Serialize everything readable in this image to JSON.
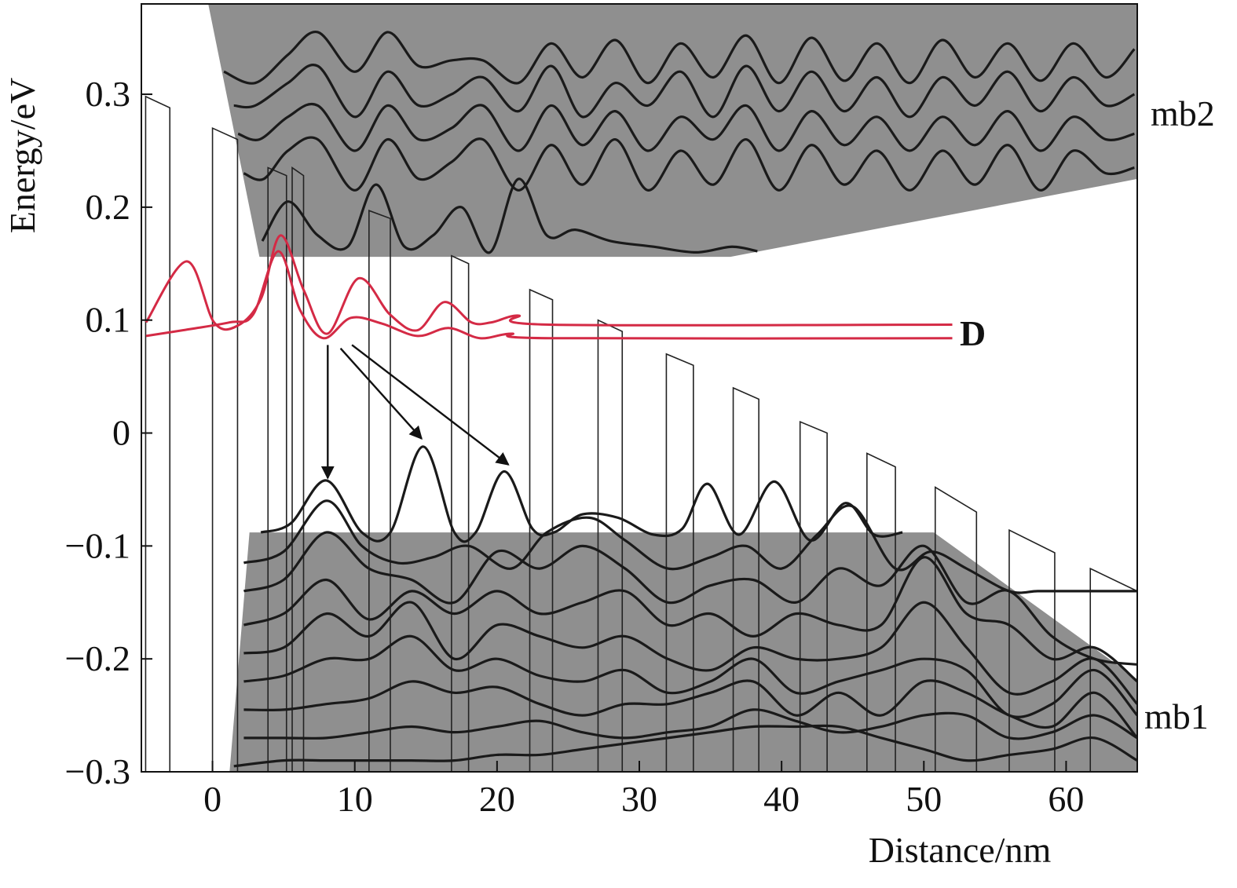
{
  "chart_data": {
    "type": "line",
    "xlabel": "Distance/nm",
    "ylabel": "Energy/eV",
    "xlim": [
      -5,
      65
    ],
    "ylim": [
      -0.3,
      0.38
    ],
    "xticks": [
      0,
      10,
      20,
      30,
      40,
      50,
      60
    ],
    "yticks": [
      {
        "value": -0.3,
        "label": "−0.3"
      },
      {
        "value": -0.2,
        "label": "−0.2"
      },
      {
        "value": -0.1,
        "label": "−0.1"
      },
      0,
      0.1,
      0.2,
      0.3
    ],
    "annotations": [
      "mb2",
      "D",
      "mb1"
    ],
    "minibands": [
      {
        "color": "#8f8f8f",
        "x": [
          -0.3,
          3.3,
          36.4,
          65,
          65,
          -0.3
        ],
        "y": [
          0.38,
          0.156,
          0.156,
          0.225,
          0.38,
          0.38
        ]
      },
      {
        "color": "#8f8f8f",
        "x": [
          2.6,
          50.7,
          65,
          65,
          1.2
        ],
        "y": [
          -0.088,
          -0.088,
          -0.218,
          -0.3,
          -0.3
        ]
      }
    ],
    "barrier_color": "#222222",
    "barriers": [
      {
        "x": [
          -4.7,
          -3.0
        ],
        "top": [
          0.298,
          0.288
        ]
      },
      {
        "x": [
          0.0,
          1.76
        ],
        "top": [
          0.27,
          0.26
        ]
      },
      {
        "x": [
          3.9,
          5.2
        ],
        "top": [
          0.235,
          0.228
        ]
      },
      {
        "x": [
          5.6,
          6.4
        ],
        "top": [
          0.235,
          0.228
        ]
      },
      {
        "x": [
          11.0,
          12.5
        ],
        "top": [
          0.197,
          0.19
        ]
      },
      {
        "x": [
          16.8,
          18.0
        ],
        "top": [
          0.157,
          0.15
        ]
      },
      {
        "x": [
          22.3,
          23.9
        ],
        "top": [
          0.127,
          0.118
        ]
      },
      {
        "x": [
          27.1,
          28.8
        ],
        "top": [
          0.1,
          0.09
        ]
      },
      {
        "x": [
          31.9,
          33.8
        ],
        "top": [
          0.07,
          0.06
        ]
      },
      {
        "x": [
          36.6,
          38.4
        ],
        "top": [
          0.04,
          0.03
        ]
      },
      {
        "x": [
          41.3,
          43.2
        ],
        "top": [
          0.01,
          0.0
        ]
      },
      {
        "x": [
          46.0,
          48.0
        ],
        "top": [
          -0.018,
          -0.03
        ]
      },
      {
        "x": [
          50.8,
          53.7
        ],
        "top": [
          -0.048,
          -0.07
        ]
      },
      {
        "x": [
          56.0,
          59.2
        ],
        "top": [
          -0.086,
          -0.106
        ]
      },
      {
        "x": [
          61.7,
          65.0
        ],
        "top": [
          -0.12,
          -0.14
        ]
      }
    ],
    "arrows": [
      {
        "x": [
          8.1,
          8.1
        ],
        "y": [
          0.078,
          -0.04
        ]
      },
      {
        "x": [
          9.0,
          14.7
        ],
        "y": [
          0.075,
          -0.005
        ]
      },
      {
        "x": [
          9.8,
          20.8
        ],
        "y": [
          0.078,
          -0.028
        ]
      }
    ],
    "series": [
      {
        "color": "#d42a45",
        "x": [
          -4.67,
          -1.81,
          0.11,
          1.76,
          3.41,
          4.78,
          6.43,
          8.08,
          10.27,
          12.47,
          14.4,
          16.3,
          18.2,
          19.6,
          21.5,
          23.7,
          52.0
        ],
        "values": [
          0.098,
          0.152,
          0.098,
          0.095,
          0.119,
          0.175,
          0.126,
          0.088,
          0.137,
          0.105,
          0.091,
          0.116,
          0.098,
          0.098,
          0.104,
          0.096,
          0.096
        ]
      },
      {
        "color": "#d42a45",
        "x": [
          -4.67,
          -2.09,
          1.21,
          2.86,
          4.62,
          6.15,
          7.8,
          9.73,
          11.9,
          14.4,
          16.6,
          18.8,
          21.0,
          23.7,
          52.0
        ],
        "values": [
          0.086,
          0.091,
          0.098,
          0.105,
          0.161,
          0.109,
          0.084,
          0.102,
          0.097,
          0.086,
          0.093,
          0.084,
          0.088,
          0.084,
          0.084
        ]
      },
      {
        "color": "#1a1a1a",
        "x": [
          0.8,
          3,
          5.3,
          7.4,
          10,
          12.3,
          14.5,
          16.8,
          19,
          21.5,
          23.8,
          26,
          28.3,
          30.6,
          32.9,
          35.2,
          37.5,
          39.8,
          42.1,
          44.4,
          46.7,
          49,
          51.3,
          53.6,
          55.9,
          58.2,
          60.5,
          62.8,
          64.8
        ],
        "values": [
          0.32,
          0.31,
          0.335,
          0.355,
          0.32,
          0.355,
          0.325,
          0.33,
          0.33,
          0.31,
          0.345,
          0.315,
          0.348,
          0.31,
          0.345,
          0.315,
          0.352,
          0.31,
          0.35,
          0.312,
          0.345,
          0.31,
          0.348,
          0.315,
          0.345,
          0.312,
          0.345,
          0.315,
          0.34
        ]
      },
      {
        "color": "#1a1a1a",
        "x": [
          1.5,
          3,
          5.3,
          7.4,
          10,
          12.3,
          14.5,
          16.8,
          19,
          21.5,
          23.8,
          26,
          28.3,
          30.6,
          32.9,
          35.2,
          37.5,
          39.8,
          42.1,
          44.4,
          46.7,
          49,
          51.3,
          53.6,
          55.9,
          58.2,
          60.5,
          62.8,
          64.8
        ],
        "values": [
          0.29,
          0.29,
          0.31,
          0.325,
          0.28,
          0.32,
          0.29,
          0.3,
          0.315,
          0.285,
          0.325,
          0.28,
          0.31,
          0.29,
          0.32,
          0.28,
          0.325,
          0.285,
          0.32,
          0.285,
          0.315,
          0.28,
          0.315,
          0.29,
          0.32,
          0.285,
          0.315,
          0.29,
          0.3
        ]
      },
      {
        "color": "#1a1a1a",
        "x": [
          1.8,
          3.3,
          5.3,
          7.4,
          10,
          12.3,
          14.5,
          16.8,
          19,
          21.5,
          23.8,
          26,
          28.3,
          30.6,
          32.9,
          35.2,
          37.5,
          39.8,
          42.1,
          44.4,
          46.7,
          49,
          51.3,
          53.6,
          55.9,
          58.2,
          60.5,
          62.8,
          64.8
        ],
        "values": [
          0.265,
          0.26,
          0.28,
          0.29,
          0.25,
          0.29,
          0.26,
          0.27,
          0.29,
          0.25,
          0.29,
          0.255,
          0.285,
          0.25,
          0.28,
          0.26,
          0.29,
          0.25,
          0.285,
          0.255,
          0.28,
          0.25,
          0.28,
          0.255,
          0.285,
          0.25,
          0.28,
          0.26,
          0.265
        ]
      },
      {
        "color": "#1a1a1a",
        "x": [
          2.2,
          3.6,
          5.3,
          7.4,
          10,
          12.3,
          14.5,
          16.8,
          19,
          21.5,
          23.8,
          26,
          28.3,
          30.6,
          32.9,
          35.2,
          37.5,
          39.8,
          42.1,
          44.4,
          46.7,
          49,
          51.3,
          53.6,
          55.9,
          58.2,
          60.5,
          62.8,
          64.8
        ],
        "values": [
          0.23,
          0.225,
          0.25,
          0.26,
          0.215,
          0.26,
          0.225,
          0.24,
          0.26,
          0.215,
          0.255,
          0.22,
          0.26,
          0.215,
          0.25,
          0.22,
          0.26,
          0.215,
          0.255,
          0.22,
          0.25,
          0.215,
          0.25,
          0.22,
          0.255,
          0.215,
          0.25,
          0.23,
          0.235
        ]
      },
      {
        "color": "#1a1a1a",
        "x": [
          3.5,
          5.3,
          7.4,
          9.5,
          11.5,
          13.5,
          15.5,
          17.5,
          19.5,
          21.5,
          23.5,
          25.5,
          28,
          31,
          34,
          36.5,
          38.3
        ],
        "values": [
          0.17,
          0.205,
          0.175,
          0.165,
          0.22,
          0.165,
          0.175,
          0.2,
          0.16,
          0.225,
          0.175,
          0.18,
          0.17,
          0.165,
          0.16,
          0.165,
          0.161
        ]
      },
      {
        "color": "#1a1a1a",
        "x": [
          3.4,
          5.5,
          8,
          10.5,
          12.5,
          14.8,
          17,
          18.5,
          20.5,
          22.5,
          24,
          26,
          28.5,
          31,
          33,
          34.8,
          37,
          39.5,
          42,
          44.5,
          46.5,
          48.5
        ],
        "values": [
          -0.088,
          -0.08,
          -0.042,
          -0.088,
          -0.088,
          -0.012,
          -0.088,
          -0.088,
          -0.034,
          -0.085,
          -0.088,
          -0.072,
          -0.075,
          -0.09,
          -0.085,
          -0.045,
          -0.09,
          -0.043,
          -0.095,
          -0.062,
          -0.09,
          -0.088
        ]
      },
      {
        "color": "#1a1a1a",
        "x": [
          2.2,
          5,
          8,
          10.5,
          13,
          15.5,
          18,
          21,
          23.5,
          26.5,
          29,
          32,
          35,
          37.5,
          40,
          42.5,
          45,
          48,
          50.5,
          53,
          56,
          58,
          60,
          62.5,
          65
        ],
        "values": [
          -0.115,
          -0.105,
          -0.06,
          -0.1,
          -0.115,
          -0.11,
          -0.1,
          -0.12,
          -0.088,
          -0.075,
          -0.095,
          -0.12,
          -0.11,
          -0.1,
          -0.12,
          -0.09,
          -0.065,
          -0.12,
          -0.105,
          -0.12,
          -0.14,
          -0.14,
          -0.14,
          -0.14,
          -0.14
        ]
      },
      {
        "color": "#1a1a1a",
        "x": [
          2.2,
          5,
          8,
          11,
          14,
          17,
          20,
          23,
          26,
          29,
          32,
          35,
          38,
          41,
          44,
          47,
          50,
          53,
          56,
          59,
          62,
          65
        ],
        "values": [
          -0.14,
          -0.13,
          -0.088,
          -0.12,
          -0.13,
          -0.15,
          -0.105,
          -0.12,
          -0.1,
          -0.12,
          -0.15,
          -0.135,
          -0.13,
          -0.15,
          -0.12,
          -0.135,
          -0.1,
          -0.15,
          -0.14,
          -0.18,
          -0.2,
          -0.205
        ]
      },
      {
        "color": "#1a1a1a",
        "x": [
          2.2,
          5,
          8,
          11,
          14,
          17,
          20,
          23,
          26,
          29,
          32,
          35,
          38,
          41,
          44,
          47,
          50,
          53,
          56,
          59,
          62,
          65
        ],
        "values": [
          -0.17,
          -0.16,
          -0.13,
          -0.165,
          -0.14,
          -0.16,
          -0.14,
          -0.16,
          -0.15,
          -0.14,
          -0.17,
          -0.16,
          -0.18,
          -0.16,
          -0.17,
          -0.17,
          -0.11,
          -0.16,
          -0.17,
          -0.2,
          -0.19,
          -0.22
        ]
      },
      {
        "color": "#1a1a1a",
        "x": [
          2.2,
          5,
          8,
          11,
          14,
          17,
          20,
          23,
          26,
          29,
          32,
          35,
          38,
          41,
          44,
          47,
          50,
          53,
          56,
          59,
          62,
          65
        ],
        "values": [
          -0.195,
          -0.19,
          -0.16,
          -0.18,
          -0.15,
          -0.2,
          -0.17,
          -0.18,
          -0.19,
          -0.18,
          -0.2,
          -0.21,
          -0.19,
          -0.2,
          -0.2,
          -0.19,
          -0.15,
          -0.19,
          -0.23,
          -0.22,
          -0.2,
          -0.24
        ]
      },
      {
        "color": "#1a1a1a",
        "x": [
          2.2,
          5,
          8,
          11,
          14,
          17,
          20,
          23,
          26,
          29,
          32,
          35,
          38,
          41,
          44,
          47,
          50,
          53,
          56,
          59,
          62,
          65
        ],
        "values": [
          -0.22,
          -0.215,
          -0.2,
          -0.2,
          -0.18,
          -0.21,
          -0.2,
          -0.215,
          -0.22,
          -0.21,
          -0.23,
          -0.22,
          -0.2,
          -0.23,
          -0.22,
          -0.21,
          -0.2,
          -0.21,
          -0.25,
          -0.24,
          -0.21,
          -0.25
        ]
      },
      {
        "color": "#1a1a1a",
        "x": [
          2.2,
          5,
          8,
          11,
          14,
          17,
          20,
          23,
          26,
          29,
          32,
          35,
          38,
          41,
          44,
          47,
          50,
          53,
          56,
          59,
          62,
          65
        ],
        "values": [
          -0.245,
          -0.245,
          -0.24,
          -0.235,
          -0.22,
          -0.23,
          -0.225,
          -0.24,
          -0.25,
          -0.24,
          -0.24,
          -0.23,
          -0.22,
          -0.25,
          -0.23,
          -0.25,
          -0.22,
          -0.23,
          -0.25,
          -0.26,
          -0.23,
          -0.27
        ]
      },
      {
        "color": "#1a1a1a",
        "x": [
          2.2,
          5,
          8,
          11,
          14,
          17,
          20,
          23,
          26,
          29,
          32,
          35,
          38,
          41,
          44,
          47,
          50,
          53,
          56,
          59,
          62,
          65
        ],
        "values": [
          -0.27,
          -0.27,
          -0.27,
          -0.265,
          -0.26,
          -0.265,
          -0.26,
          -0.255,
          -0.265,
          -0.27,
          -0.265,
          -0.26,
          -0.245,
          -0.255,
          -0.265,
          -0.26,
          -0.25,
          -0.25,
          -0.27,
          -0.265,
          -0.25,
          -0.27
        ]
      },
      {
        "color": "#1a1a1a",
        "x": [
          1.5,
          5,
          8,
          11,
          14,
          17,
          20,
          23,
          26,
          29,
          32,
          35,
          38,
          41,
          44,
          47,
          50,
          53,
          56,
          59,
          62,
          65
        ],
        "values": [
          -0.295,
          -0.29,
          -0.29,
          -0.29,
          -0.29,
          -0.29,
          -0.285,
          -0.285,
          -0.28,
          -0.275,
          -0.27,
          -0.265,
          -0.26,
          -0.26,
          -0.26,
          -0.27,
          -0.28,
          -0.29,
          -0.285,
          -0.28,
          -0.27,
          -0.29
        ]
      }
    ]
  }
}
